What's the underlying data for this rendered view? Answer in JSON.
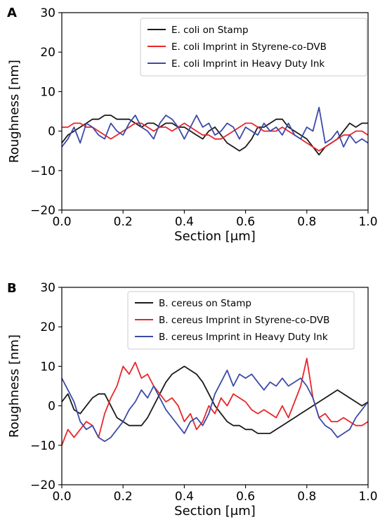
{
  "chart_data": [
    {
      "type": "line",
      "panel_label": "A",
      "xlabel": "Section [μm]",
      "ylabel": "Roughness [nm]",
      "xlim": [
        0.0,
        1.0
      ],
      "ylim": [
        -20,
        30
      ],
      "xticks": [
        "0.0",
        "0.2",
        "0.4",
        "0.6",
        "0.8",
        "1.0"
      ],
      "yticks": [
        "30",
        "20",
        "10",
        "0",
        "−10",
        "−20"
      ],
      "grid": false,
      "legend_position": "top-right",
      "series": [
        {
          "name": "E. coli on Stamp",
          "color": "#1a1a1a",
          "x": [
            0.0,
            0.02,
            0.04,
            0.06,
            0.08,
            0.1,
            0.12,
            0.14,
            0.16,
            0.18,
            0.2,
            0.22,
            0.24,
            0.26,
            0.28,
            0.3,
            0.32,
            0.34,
            0.36,
            0.38,
            0.4,
            0.42,
            0.44,
            0.46,
            0.48,
            0.5,
            0.52,
            0.54,
            0.56,
            0.58,
            0.6,
            0.62,
            0.64,
            0.66,
            0.68,
            0.7,
            0.72,
            0.74,
            0.76,
            0.78,
            0.8,
            0.82,
            0.84,
            0.86,
            0.88,
            0.9,
            0.92,
            0.94,
            0.96,
            0.98,
            1.0
          ],
          "y": [
            -3,
            -1,
            0,
            1,
            2,
            3,
            3,
            4,
            4,
            3,
            3,
            3,
            2,
            1,
            2,
            2,
            1,
            2,
            2,
            1,
            1,
            0,
            -1,
            -2,
            0,
            1,
            -1,
            -3,
            -4,
            -5,
            -4,
            -2,
            1,
            1,
            2,
            3,
            3,
            1,
            0,
            -1,
            -2,
            -4,
            -6,
            -4,
            -3,
            -2,
            0,
            2,
            1,
            2,
            2
          ]
        },
        {
          "name": "E. coli Imprint in Styrene-co-DVB",
          "color": "#e8262b",
          "x": [
            0.0,
            0.02,
            0.04,
            0.06,
            0.08,
            0.1,
            0.12,
            0.14,
            0.16,
            0.18,
            0.2,
            0.22,
            0.24,
            0.26,
            0.28,
            0.3,
            0.32,
            0.34,
            0.36,
            0.38,
            0.4,
            0.42,
            0.44,
            0.46,
            0.48,
            0.5,
            0.52,
            0.54,
            0.56,
            0.58,
            0.6,
            0.62,
            0.64,
            0.66,
            0.68,
            0.7,
            0.72,
            0.74,
            0.76,
            0.78,
            0.8,
            0.82,
            0.84,
            0.86,
            0.88,
            0.9,
            0.92,
            0.94,
            0.96,
            0.98,
            1.0
          ],
          "y": [
            1,
            1,
            2,
            2,
            1,
            1,
            0,
            -1,
            -2,
            -1,
            0,
            1,
            2,
            2,
            1,
            0,
            1,
            1,
            0,
            1,
            2,
            1,
            0,
            -1,
            -1,
            -2,
            -2,
            -1,
            0,
            1,
            2,
            2,
            1,
            0,
            0,
            0,
            1,
            0,
            -1,
            -2,
            -3,
            -4,
            -5,
            -4,
            -3,
            -2,
            -1,
            -1,
            0,
            0,
            -1
          ]
        },
        {
          "name": "E. coli Imprint in Heavy Duty Ink",
          "color": "#3b4aa8",
          "x": [
            0.0,
            0.02,
            0.04,
            0.06,
            0.08,
            0.1,
            0.12,
            0.14,
            0.16,
            0.18,
            0.2,
            0.22,
            0.24,
            0.26,
            0.28,
            0.3,
            0.32,
            0.34,
            0.36,
            0.38,
            0.4,
            0.42,
            0.44,
            0.46,
            0.48,
            0.5,
            0.52,
            0.54,
            0.56,
            0.58,
            0.6,
            0.62,
            0.64,
            0.66,
            0.68,
            0.7,
            0.72,
            0.74,
            0.76,
            0.78,
            0.8,
            0.82,
            0.84,
            0.86,
            0.88,
            0.9,
            0.92,
            0.94,
            0.96,
            0.98,
            1.0
          ],
          "y": [
            -4,
            -2,
            1,
            -3,
            2,
            1,
            -1,
            -2,
            2,
            0,
            -1,
            2,
            4,
            1,
            0,
            -2,
            2,
            4,
            3,
            1,
            -2,
            1,
            4,
            1,
            2,
            -1,
            0,
            2,
            1,
            -2,
            1,
            0,
            -1,
            2,
            0,
            1,
            -1,
            2,
            -1,
            -2,
            1,
            0,
            6,
            -3,
            -2,
            0,
            -4,
            -1,
            -3,
            -2,
            -3
          ]
        }
      ]
    },
    {
      "type": "line",
      "panel_label": "B",
      "xlabel": "Section [μm]",
      "ylabel": "Roughness [nm]",
      "xlim": [
        0.0,
        1.0
      ],
      "ylim": [
        -20,
        30
      ],
      "xticks": [
        "0.0",
        "0.2",
        "0.4",
        "0.6",
        "0.8",
        "1.0"
      ],
      "yticks": [
        "30",
        "20",
        "10",
        "0",
        "−10",
        "−20"
      ],
      "grid": false,
      "legend_position": "top-right",
      "series": [
        {
          "name": "B. cereus on Stamp",
          "color": "#1a1a1a",
          "x": [
            0.0,
            0.02,
            0.04,
            0.06,
            0.08,
            0.1,
            0.12,
            0.14,
            0.16,
            0.18,
            0.2,
            0.22,
            0.24,
            0.26,
            0.28,
            0.3,
            0.32,
            0.34,
            0.36,
            0.38,
            0.4,
            0.42,
            0.44,
            0.46,
            0.48,
            0.5,
            0.52,
            0.54,
            0.56,
            0.58,
            0.6,
            0.62,
            0.64,
            0.66,
            0.68,
            0.7,
            0.72,
            0.74,
            0.76,
            0.78,
            0.8,
            0.82,
            0.84,
            0.86,
            0.88,
            0.9,
            0.92,
            0.94,
            0.96,
            0.98,
            1.0
          ],
          "y": [
            1,
            3,
            -1,
            -2,
            0,
            2,
            3,
            3,
            0,
            -3,
            -4,
            -5,
            -5,
            -5,
            -3,
            0,
            3,
            6,
            8,
            9,
            10,
            9,
            8,
            6,
            3,
            0,
            -2,
            -4,
            -5,
            -5,
            -6,
            -6,
            -7,
            -7,
            -7,
            -6,
            -5,
            -4,
            -3,
            -2,
            -1,
            0,
            1,
            2,
            3,
            4,
            3,
            2,
            1,
            0,
            1
          ]
        },
        {
          "name": "B. cereus Imprint in Styrene-co-DVB",
          "color": "#e8262b",
          "x": [
            0.0,
            0.02,
            0.04,
            0.06,
            0.08,
            0.1,
            0.12,
            0.14,
            0.16,
            0.18,
            0.2,
            0.22,
            0.24,
            0.26,
            0.28,
            0.3,
            0.32,
            0.34,
            0.36,
            0.38,
            0.4,
            0.42,
            0.44,
            0.46,
            0.48,
            0.5,
            0.52,
            0.54,
            0.56,
            0.58,
            0.6,
            0.62,
            0.64,
            0.66,
            0.68,
            0.7,
            0.72,
            0.74,
            0.76,
            0.78,
            0.8,
            0.82,
            0.84,
            0.86,
            0.88,
            0.9,
            0.92,
            0.94,
            0.96,
            0.98,
            1.0
          ],
          "y": [
            -10,
            -6,
            -8,
            -6,
            -4,
            -5,
            -8,
            -2,
            2,
            5,
            10,
            8,
            11,
            7,
            8,
            5,
            3,
            1,
            2,
            0,
            -4,
            -2,
            -6,
            -4,
            0,
            -2,
            2,
            0,
            3,
            2,
            1,
            -1,
            -2,
            -1,
            -2,
            -3,
            0,
            -3,
            1,
            5,
            12,
            2,
            -3,
            -2,
            -4,
            -4,
            -3,
            -4,
            -5,
            -5,
            -4
          ]
        },
        {
          "name": "B. cereus Imprint in Heavy Duty Ink",
          "color": "#3b4aa8",
          "x": [
            0.0,
            0.02,
            0.04,
            0.06,
            0.08,
            0.1,
            0.12,
            0.14,
            0.16,
            0.18,
            0.2,
            0.22,
            0.24,
            0.26,
            0.28,
            0.3,
            0.32,
            0.34,
            0.36,
            0.38,
            0.4,
            0.42,
            0.44,
            0.46,
            0.48,
            0.5,
            0.52,
            0.54,
            0.56,
            0.58,
            0.6,
            0.62,
            0.64,
            0.66,
            0.68,
            0.7,
            0.72,
            0.74,
            0.76,
            0.78,
            0.8,
            0.82,
            0.84,
            0.86,
            0.88,
            0.9,
            0.92,
            0.94,
            0.96,
            0.98,
            1.0
          ],
          "y": [
            7,
            4,
            1,
            -4,
            -6,
            -5,
            -8,
            -9,
            -8,
            -6,
            -4,
            -1,
            1,
            4,
            2,
            5,
            2,
            -1,
            -3,
            -5,
            -7,
            -4,
            -3,
            -5,
            -2,
            3,
            6,
            9,
            5,
            8,
            7,
            8,
            6,
            4,
            6,
            5,
            7,
            5,
            6,
            7,
            5,
            2,
            -3,
            -5,
            -6,
            -8,
            -7,
            -6,
            -3,
            -1,
            1
          ]
        }
      ]
    }
  ]
}
